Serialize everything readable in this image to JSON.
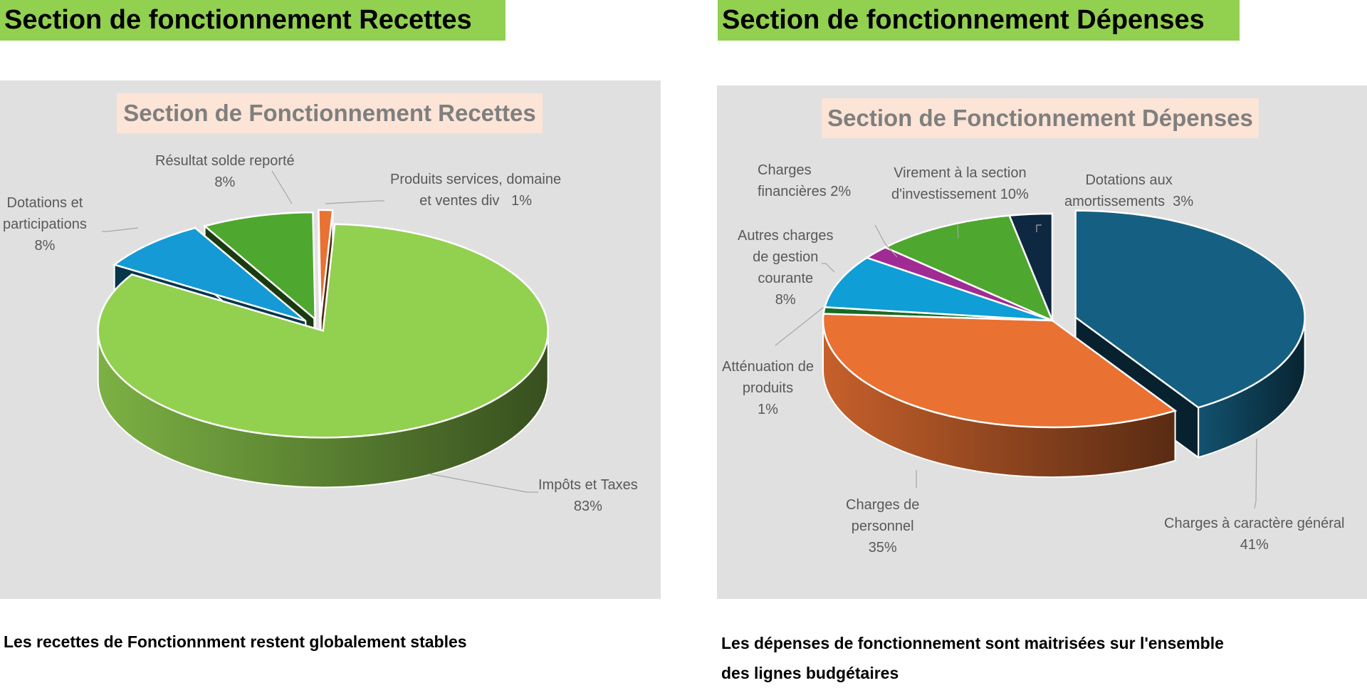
{
  "headers": {
    "left": "Section de fonctionnement Recettes",
    "right": "Section de fonctionnement Dépenses"
  },
  "captions": {
    "left": "Les recettes de Fonctionnment restent globalement stables",
    "right_line1": "Les dépenses de fonctionnement sont maitrisées sur l'ensemble",
    "right_line2": "des lignes budgétaires"
  },
  "chart_data": [
    {
      "type": "pie",
      "style": "3d-exploded",
      "title": "Section de Fonctionnement Recettes",
      "title_background": "#fce4d6",
      "slices": [
        {
          "name_lines": [
            "Impôts et Taxes"
          ],
          "pct_label": "83%",
          "value": 83,
          "color": "#92d050"
        },
        {
          "name_lines": [
            "Dotations et",
            "participations"
          ],
          "pct_label": "8%",
          "value": 8,
          "color": "#159ad6"
        },
        {
          "name_lines": [
            "Résultat solde reporté"
          ],
          "pct_label": "8%",
          "value": 8,
          "color": "#4ea72e"
        },
        {
          "name_lines": [
            "Produits services, domaine",
            "et ventes div"
          ],
          "pct_label": "1%",
          "value": 1,
          "color": "#e97132"
        }
      ]
    },
    {
      "type": "pie",
      "style": "3d-exploded",
      "title": "Section de Fonctionnement Dépenses",
      "title_background": "#fce4d6",
      "slices": [
        {
          "name_lines": [
            "Charges à caractère général"
          ],
          "pct_label": "41%",
          "value": 41,
          "color": "#156082"
        },
        {
          "name_lines": [
            "Charges de",
            "personnel"
          ],
          "pct_label": "35%",
          "value": 35,
          "color": "#e97132"
        },
        {
          "name_lines": [
            "Atténuation de",
            "produits"
          ],
          "pct_label": "1%",
          "value": 1,
          "color": "#196b24"
        },
        {
          "name_lines": [
            "Autres charges",
            "de gestion",
            "courante"
          ],
          "pct_label": "8%",
          "value": 8,
          "color": "#0f9ed5"
        },
        {
          "name_lines": [
            "Charges",
            "financières"
          ],
          "pct_label": "2%",
          "value": 2,
          "color": "#a02b93"
        },
        {
          "name_lines": [
            "Virement à la section",
            "d'investissement"
          ],
          "pct_label": "10%",
          "value": 10,
          "color": "#4ea72e"
        },
        {
          "name_lines": [
            "Dotations aux",
            "amortissements"
          ],
          "pct_label": "3%",
          "value": 3,
          "color": "#0e2841"
        }
      ]
    }
  ]
}
